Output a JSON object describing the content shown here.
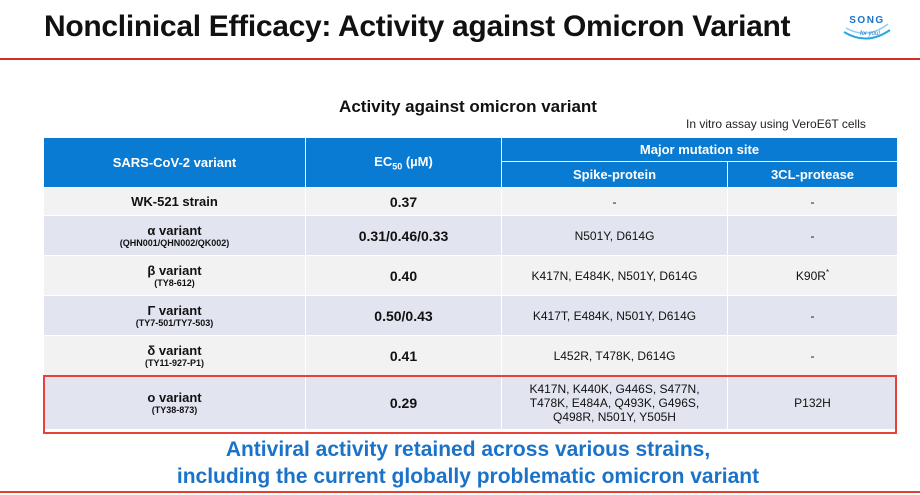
{
  "header": {
    "title": "Nonclinical Efficacy: Activity against Omicron Variant",
    "logo_text_top": "SONG",
    "logo_text_bottom": "for you!"
  },
  "table_title": "Activity against omicron variant",
  "assay_note": "In vitro assay using VeroE6T cells",
  "table": {
    "headers": {
      "variant": "SARS-CoV-2 variant",
      "ec50_prefix": "EC",
      "ec50_sub": "50",
      "ec50_unit": " (µM)",
      "major": "Major mutation site",
      "spike": "Spike-protein",
      "protease": "3CL-protease"
    },
    "rows": [
      {
        "name": "WK-521 strain",
        "code": "",
        "ec50": "0.37",
        "spike": "-",
        "protease": "-"
      },
      {
        "name": "α variant",
        "code": "(QHN001/QHN002/QK002)",
        "ec50": "0.31/0.46/0.33",
        "spike": "N501Y, D614G",
        "protease": "-"
      },
      {
        "name": "β variant",
        "code": "(TY8-612)",
        "ec50": "0.40",
        "spike": "K417N, E484K, N501Y, D614G",
        "protease": "K90R",
        "protease_sup": "*"
      },
      {
        "name": "Γ variant",
        "code": "(TY7-501/TY7-503)",
        "ec50": "0.50/0.43",
        "spike": "K417T, E484K, N501Y, D614G",
        "protease": "-"
      },
      {
        "name": "δ variant",
        "code": "(TY11-927-P1)",
        "ec50": "0.41",
        "spike": "L452R, T478K, D614G",
        "protease": "-"
      },
      {
        "name": "o variant",
        "code": "(TY38-873)",
        "ec50": "0.29",
        "spike_lines": [
          "K417N, K440K, G446S, S477N,",
          "T478K, E484A, Q493K, G496S,",
          "Q498R, N501Y, Y505H"
        ],
        "protease": "P132H"
      }
    ]
  },
  "conclusion": {
    "line1": "Antiviral activity retained across various strains,",
    "line2": "including the current globally problematic omicron variant"
  },
  "colors": {
    "header_blue": "#0a7bd2",
    "row_light": "#f2f2f2",
    "row_dark": "#e2e5ef",
    "highlight_red": "#e8413a",
    "conclusion_blue": "#1a73c9",
    "title_rule_red": "#d42b2b"
  }
}
